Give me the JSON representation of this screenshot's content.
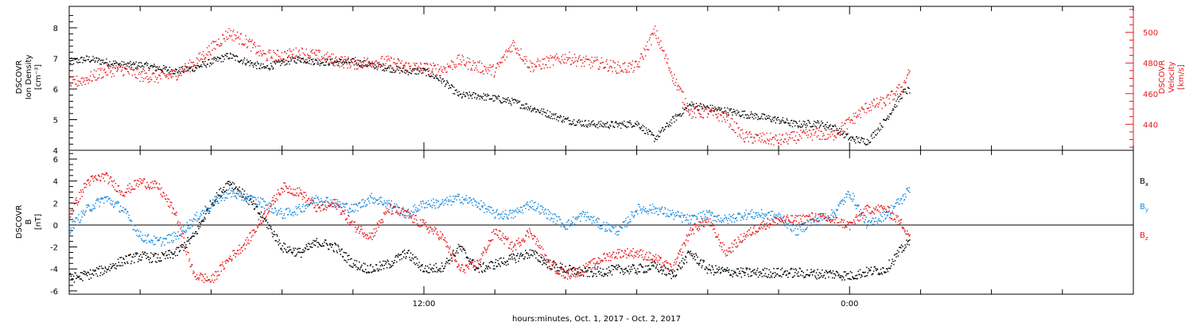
{
  "colors": {
    "black": "#000000",
    "red": "#e8161b",
    "blue": "#1a8be0"
  },
  "xaxis": {
    "label": "hours:minutes, Oct.  1, 2017 - Oct.  2, 2017",
    "range_hours": [
      0,
      30
    ],
    "major_ticks": [
      {
        "hour": 10,
        "label": "12:00"
      },
      {
        "hour": 22,
        "label": "0:00"
      }
    ],
    "data_end_hour": 23.7
  },
  "chart_data": [
    {
      "type": "scatter",
      "panel": "top",
      "title": "",
      "ylabel_left": [
        "DSCOVR",
        "Ion Density",
        "[cm⁻³]"
      ],
      "ylabel_right": [
        "DSCOVR",
        "Velocity",
        "[km/s]"
      ],
      "ylim_left": [
        4,
        8.7
      ],
      "ylim_right": [
        423,
        517
      ],
      "yticks_left": [
        4,
        5,
        6,
        7,
        8
      ],
      "yticks_right": [
        440,
        460,
        480,
        500
      ],
      "series": [
        {
          "name": "",
          "axis": "left",
          "color_key": "black",
          "x_hours": [
            0,
            0.5,
            1,
            1.5,
            2,
            2.5,
            3,
            3.5,
            4,
            4.5,
            5,
            5.5,
            6,
            6.5,
            7,
            7.5,
            8,
            8.5,
            9,
            9.5,
            10,
            10.5,
            11,
            11.5,
            12,
            12.5,
            13,
            13.5,
            14,
            14.5,
            15,
            15.5,
            16,
            16.5,
            17,
            17.5,
            18,
            18.5,
            19,
            19.5,
            20,
            20.5,
            21,
            21.5,
            22,
            22.5,
            23,
            23.5,
            23.7
          ],
          "values": [
            6.9,
            7.0,
            6.9,
            6.8,
            6.8,
            6.7,
            6.6,
            6.7,
            6.9,
            7.1,
            6.9,
            6.7,
            6.9,
            7.0,
            6.9,
            6.9,
            6.9,
            6.8,
            6.7,
            6.6,
            6.6,
            6.3,
            5.8,
            5.8,
            5.7,
            5.6,
            5.4,
            5.2,
            5.0,
            4.9,
            4.85,
            4.85,
            4.9,
            4.4,
            5.0,
            5.5,
            5.4,
            5.3,
            5.2,
            5.1,
            5.0,
            4.85,
            4.9,
            4.8,
            4.4,
            4.3,
            5.0,
            5.9,
            6.0
          ]
        },
        {
          "name": "",
          "axis": "right",
          "color_key": "red",
          "x_hours": [
            0,
            0.5,
            1,
            1.5,
            2,
            2.5,
            3,
            3.5,
            4,
            4.5,
            5,
            5.5,
            6,
            6.5,
            7,
            7.5,
            8,
            8.5,
            9,
            9.5,
            10,
            10.5,
            11,
            11.5,
            12,
            12.5,
            13,
            13.5,
            14,
            14.5,
            15,
            15.5,
            16,
            16.5,
            17,
            17.5,
            18,
            18.5,
            19,
            19.5,
            20,
            20.5,
            21,
            21.5,
            22,
            22.5,
            23,
            23.5,
            23.7
          ],
          "values": [
            467,
            470,
            475,
            476,
            472,
            471,
            473,
            480,
            490,
            500,
            494,
            485,
            485,
            487,
            485,
            482,
            480,
            481,
            481,
            478,
            477,
            476,
            482,
            478,
            475,
            493,
            478,
            481,
            484,
            481,
            480,
            477,
            478,
            501,
            472,
            448,
            448,
            445,
            432,
            431,
            430,
            432,
            434,
            433,
            442,
            452,
            455,
            465,
            478
          ]
        }
      ]
    },
    {
      "type": "scatter",
      "panel": "bottom",
      "title": "",
      "ylabel_left": [
        "DSCOVR",
        "B",
        "[nT]"
      ],
      "ylim": [
        -6.3,
        6.8
      ],
      "yticks": [
        -6,
        -4,
        -2,
        0,
        2,
        4,
        6
      ],
      "zero_line": true,
      "legend": [
        {
          "label": "B",
          "sub": "x",
          "color_key": "black"
        },
        {
          "label": "B",
          "sub": "y",
          "color_key": "blue"
        },
        {
          "label": "B",
          "sub": "z",
          "color_key": "red"
        }
      ],
      "series": [
        {
          "name": "Bx",
          "color_key": "black",
          "x_hours": [
            0,
            0.5,
            1,
            1.5,
            2,
            2.5,
            3,
            3.5,
            4,
            4.5,
            5,
            5.5,
            6,
            6.5,
            7,
            7.5,
            8,
            8.5,
            9,
            9.5,
            10,
            10.5,
            11,
            11.5,
            12,
            12.5,
            13,
            13.5,
            14,
            14.5,
            15,
            15.5,
            16,
            16.5,
            17,
            17.5,
            18,
            18.5,
            19,
            19.5,
            20,
            20.5,
            21,
            21.5,
            22,
            22.5,
            23,
            23.5,
            23.7
          ],
          "values": [
            -4.8,
            -4.5,
            -4.0,
            -3.2,
            -2.8,
            -3.0,
            -2.5,
            -1.0,
            2.0,
            4.0,
            2.5,
            0.5,
            -2.0,
            -2.5,
            -1.5,
            -2.0,
            -3.5,
            -4.0,
            -3.5,
            -2.5,
            -4.0,
            -3.8,
            -2.0,
            -4.0,
            -3.5,
            -3.0,
            -2.5,
            -3.5,
            -4.0,
            -4.3,
            -4.2,
            -4.0,
            -4.0,
            -3.7,
            -4.5,
            -2.5,
            -4.0,
            -4.2,
            -4.3,
            -4.3,
            -4.3,
            -4.3,
            -4.4,
            -4.4,
            -4.6,
            -4.2,
            -4.0,
            -2.0,
            -1.5
          ]
        },
        {
          "name": "By",
          "color_key": "blue",
          "x_hours": [
            0,
            0.5,
            1,
            1.5,
            2,
            2.5,
            3,
            3.5,
            4,
            4.5,
            5,
            5.5,
            6,
            6.5,
            7,
            7.5,
            8,
            8.5,
            9,
            9.5,
            10,
            10.5,
            11,
            11.5,
            12,
            12.5,
            13,
            13.5,
            14,
            14.5,
            15,
            15.5,
            16,
            16.5,
            17,
            17.5,
            18,
            18.5,
            19,
            19.5,
            20,
            20.5,
            21,
            21.5,
            22,
            22.5,
            23,
            23.5,
            23.7
          ],
          "values": [
            -0.3,
            1.5,
            2.5,
            1.5,
            -1.0,
            -1.5,
            -1.0,
            0.5,
            2.0,
            3.0,
            2.5,
            2.0,
            1.0,
            1.5,
            2.5,
            2.0,
            1.5,
            2.5,
            2.0,
            1.0,
            2.0,
            2.0,
            2.5,
            2.0,
            1.0,
            1.0,
            2.0,
            1.0,
            0.0,
            1.0,
            0.0,
            -0.5,
            1.5,
            1.5,
            1.0,
            0.5,
            1.0,
            0.5,
            1.0,
            1.0,
            0.8,
            -0.5,
            0.5,
            1.0,
            3.0,
            0.0,
            1.0,
            2.5,
            3.5
          ]
        },
        {
          "name": "Bz",
          "color_key": "red",
          "x_hours": [
            0,
            0.5,
            1,
            1.5,
            2,
            2.5,
            3,
            3.5,
            4,
            4.5,
            5,
            5.5,
            6,
            6.5,
            7,
            7.5,
            8,
            8.5,
            9,
            9.5,
            10,
            10.5,
            11,
            11.5,
            12,
            12.5,
            13,
            13.5,
            14,
            14.5,
            15,
            15.5,
            16,
            16.5,
            17,
            17.5,
            18,
            18.5,
            19,
            19.5,
            20,
            20.5,
            21,
            21.5,
            22,
            22.5,
            23,
            23.5,
            23.7
          ],
          "values": [
            1.0,
            4.0,
            4.5,
            3.0,
            4.0,
            3.5,
            1.0,
            -4.5,
            -5.0,
            -3.0,
            -1.5,
            1.0,
            3.5,
            3.0,
            1.5,
            2.0,
            0.0,
            -1.0,
            1.5,
            1.0,
            0.0,
            -1.0,
            -4.0,
            -3.5,
            -0.5,
            -2.0,
            -0.5,
            -3.5,
            -4.5,
            -4.0,
            -3.0,
            -2.5,
            -2.5,
            -3.0,
            -4.0,
            -0.5,
            0.5,
            -2.5,
            -1.0,
            0.0,
            0.5,
            0.5,
            0.8,
            0.5,
            0.0,
            1.5,
            1.5,
            0.0,
            -1.0
          ]
        }
      ]
    }
  ]
}
